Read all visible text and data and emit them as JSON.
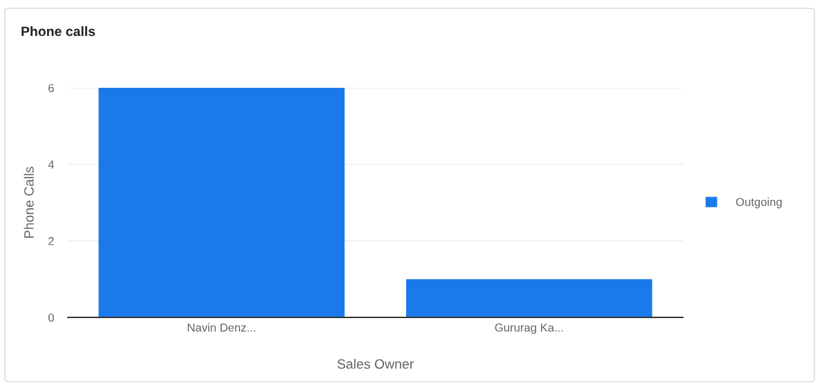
{
  "chart_data": {
    "type": "bar",
    "title": "Phone calls",
    "xlabel": "Sales Owner",
    "ylabel": "Phone Calls",
    "categories": [
      "Navin Denz...",
      "Gururag Ka..."
    ],
    "series": [
      {
        "name": "Outgoing",
        "color": "#1a7ae9",
        "values": [
          6,
          1
        ]
      }
    ],
    "ylim": [
      0,
      6
    ],
    "yticks": [
      0,
      2,
      4,
      6
    ],
    "grid": "y",
    "legend": "right"
  }
}
